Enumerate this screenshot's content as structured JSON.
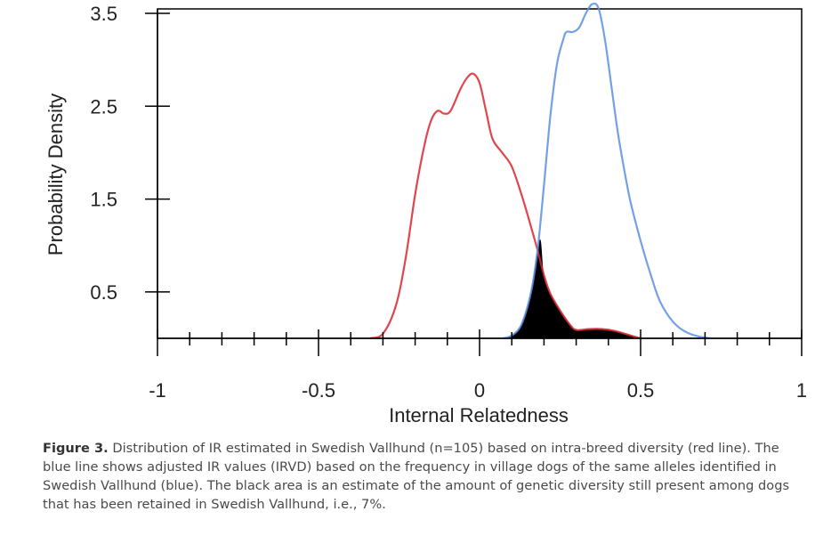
{
  "chart_data": {
    "type": "line",
    "xlabel": "Internal Relatedness",
    "ylabel": "Probability Density",
    "xlim": [
      -1,
      1
    ],
    "ylim": [
      0,
      3.5
    ],
    "x_ticks": [
      "-1",
      "-0.5",
      "0",
      "0.5",
      "1"
    ],
    "x_tick_values": [
      -1,
      -0.5,
      0,
      0.5,
      1
    ],
    "y_ticks": [
      "0.5",
      "1.5",
      "2.5",
      "3.5"
    ],
    "y_tick_values": [
      0.5,
      1.5,
      2.5,
      3.5
    ],
    "series": [
      {
        "color": "#d9262e",
        "x": [
          -0.34,
          -0.3,
          -0.26,
          -0.23,
          -0.2,
          -0.17,
          -0.15,
          -0.13,
          -0.11,
          -0.09,
          -0.06,
          -0.04,
          -0.02,
          0.0,
          0.02,
          0.04,
          0.07,
          0.1,
          0.13,
          0.16,
          0.18,
          0.2,
          0.22,
          0.25,
          0.28,
          0.3,
          0.34,
          0.38,
          0.42,
          0.46,
          0.5
        ],
        "y": [
          0.0,
          0.05,
          0.35,
          0.85,
          1.55,
          2.1,
          2.35,
          2.45,
          2.42,
          2.45,
          2.68,
          2.8,
          2.85,
          2.75,
          2.45,
          2.15,
          2.0,
          1.85,
          1.55,
          1.2,
          0.95,
          0.68,
          0.48,
          0.3,
          0.15,
          0.09,
          0.1,
          0.1,
          0.08,
          0.04,
          0.0
        ]
      },
      {
        "color": "#5b8fe3",
        "x": [
          0.07,
          0.1,
          0.13,
          0.16,
          0.18,
          0.2,
          0.22,
          0.24,
          0.26,
          0.27,
          0.29,
          0.31,
          0.33,
          0.35,
          0.37,
          0.39,
          0.41,
          0.43,
          0.45,
          0.47,
          0.5,
          0.53,
          0.56,
          0.6,
          0.64,
          0.68,
          0.72
        ],
        "y": [
          0.0,
          0.03,
          0.15,
          0.5,
          0.95,
          1.65,
          2.4,
          2.95,
          3.22,
          3.3,
          3.3,
          3.35,
          3.5,
          3.6,
          3.55,
          3.2,
          2.7,
          2.2,
          1.8,
          1.45,
          1.05,
          0.7,
          0.4,
          0.18,
          0.07,
          0.02,
          0.0
        ]
      }
    ],
    "shaded_overlap": {
      "color": "#000000",
      "x": [
        0.07,
        0.1,
        0.13,
        0.16,
        0.18,
        0.19,
        0.2,
        0.22,
        0.25,
        0.28,
        0.3,
        0.34,
        0.38,
        0.42,
        0.46,
        0.5
      ],
      "y": [
        0.0,
        0.03,
        0.15,
        0.5,
        0.95,
        1.05,
        0.68,
        0.48,
        0.3,
        0.15,
        0.09,
        0.1,
        0.1,
        0.08,
        0.04,
        0.0
      ]
    },
    "grid": false,
    "legend": "none"
  },
  "caption": {
    "label": "Figure 3.",
    "text": " Distribution of IR estimated in Swedish Vallhund (n=105) based on intra-breed diversity (red line). The blue line shows adjusted IR values (IRVD) based on the frequency in village dogs of the same alleles identified in Swedish Vallhund (blue). The black area is an estimate of the amount of genetic diversity still present among dogs that has been retained in Swedish Vallhund, i.e., 7%."
  }
}
